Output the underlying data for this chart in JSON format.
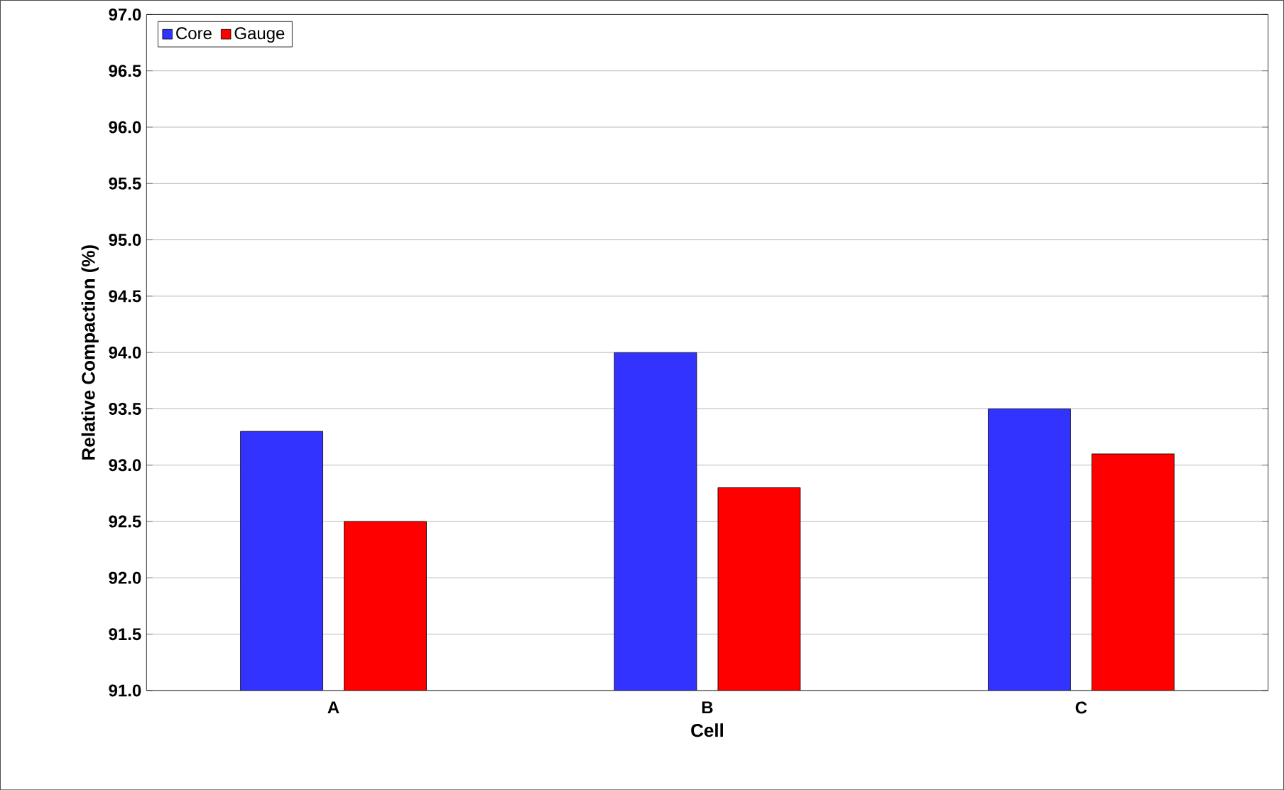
{
  "chart_data": {
    "type": "bar",
    "xlabel": "Cell",
    "ylabel": "Relative Compaction (%)",
    "categories": [
      "A",
      "B",
      "C"
    ],
    "series": [
      {
        "name": "Core",
        "color": "#3333ff",
        "values": [
          93.3,
          94.0,
          93.5
        ]
      },
      {
        "name": "Gauge",
        "color": "#ff0000",
        "values": [
          92.5,
          92.8,
          93.1
        ]
      }
    ],
    "ylim": [
      91,
      97
    ],
    "yticks": [
      {
        "value": 91,
        "label": "91.0"
      },
      {
        "value": 91.5,
        "label": "91.5"
      },
      {
        "value": 92,
        "label": "92.0"
      },
      {
        "value": 92.5,
        "label": "92.5"
      },
      {
        "value": 93,
        "label": "93.0"
      },
      {
        "value": 93.5,
        "label": "93.5"
      },
      {
        "value": 94,
        "label": "94.0"
      },
      {
        "value": 94.5,
        "label": "94.5"
      },
      {
        "value": 95,
        "label": "95.0"
      },
      {
        "value": 95.5,
        "label": "95.5"
      },
      {
        "value": 96,
        "label": "96.0"
      },
      {
        "value": 96.5,
        "label": "96.5"
      },
      {
        "value": 97,
        "label": "97.0"
      }
    ],
    "grid": "y",
    "legend": "top left"
  }
}
